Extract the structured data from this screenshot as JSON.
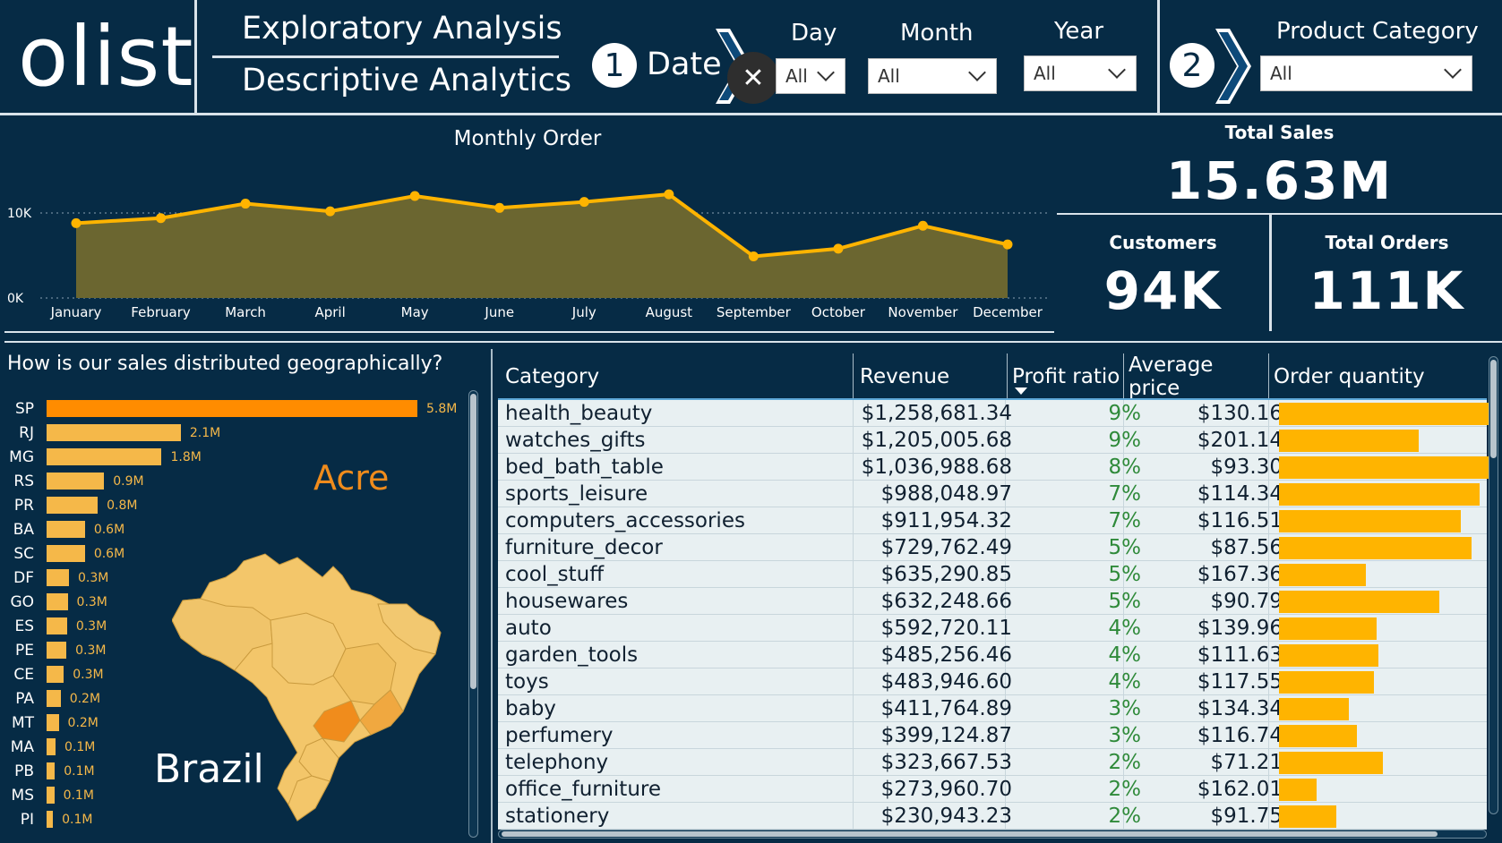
{
  "header": {
    "logo": "olist",
    "title1": "Exploratory Analysis",
    "title2": "Descriptive Analytics",
    "step1": "1",
    "date_label": "Date",
    "step2": "2",
    "clear_icon": "close-icon",
    "slicers": {
      "day": {
        "label": "Day",
        "value": "All"
      },
      "month": {
        "label": "Month",
        "value": "All"
      },
      "year": {
        "label": "Year",
        "value": "All"
      },
      "category": {
        "label": "Product Category",
        "value": "All"
      }
    }
  },
  "colors": {
    "background": "#062b45",
    "line": "#ffb400",
    "area": "#6b6630",
    "bar_top": "#ff8c00",
    "bar": "#f5b849",
    "qty_bar": "#ffb400",
    "profit_text": "#2f8a3a"
  },
  "chart_data": {
    "type": "area",
    "title": "Monthly Order",
    "categories": [
      "January",
      "February",
      "March",
      "April",
      "May",
      "June",
      "July",
      "August",
      "September",
      "October",
      "November",
      "December"
    ],
    "values": [
      8800,
      9400,
      11100,
      10200,
      12000,
      10600,
      11300,
      12200,
      4900,
      5800,
      8500,
      6300
    ],
    "ytick_labels": [
      "0K",
      "10K"
    ],
    "yticks": [
      0,
      10000
    ],
    "ylim": [
      0,
      14000
    ],
    "grid": "dotted horizontal at ticks"
  },
  "kpis": {
    "total_sales": {
      "label": "Total Sales",
      "value": "15.63M"
    },
    "customers": {
      "label": "Customers",
      "value": "94K"
    },
    "total_orders": {
      "label": "Total Orders",
      "value": "111K"
    }
  },
  "geo": {
    "title": "How is our sales distributed geographically?",
    "highlight_label": "Acre",
    "map_label": "Brazil",
    "bars": [
      {
        "code": "SP",
        "label": "5.8M",
        "value": 5.8
      },
      {
        "code": "RJ",
        "label": "2.1M",
        "value": 2.1
      },
      {
        "code": "MG",
        "label": "1.8M",
        "value": 1.8
      },
      {
        "code": "RS",
        "label": "0.9M",
        "value": 0.9
      },
      {
        "code": "PR",
        "label": "0.8M",
        "value": 0.8
      },
      {
        "code": "BA",
        "label": "0.6M",
        "value": 0.6
      },
      {
        "code": "SC",
        "label": "0.6M",
        "value": 0.6
      },
      {
        "code": "DF",
        "label": "0.3M",
        "value": 0.35
      },
      {
        "code": "GO",
        "label": "0.3M",
        "value": 0.33
      },
      {
        "code": "ES",
        "label": "0.3M",
        "value": 0.32
      },
      {
        "code": "PE",
        "label": "0.3M",
        "value": 0.31
      },
      {
        "code": "CE",
        "label": "0.3M",
        "value": 0.27
      },
      {
        "code": "PA",
        "label": "0.2M",
        "value": 0.22
      },
      {
        "code": "MT",
        "label": "0.2M",
        "value": 0.19
      },
      {
        "code": "MA",
        "label": "0.1M",
        "value": 0.14
      },
      {
        "code": "PB",
        "label": "0.1M",
        "value": 0.13
      },
      {
        "code": "MS",
        "label": "0.1M",
        "value": 0.12
      },
      {
        "code": "PI",
        "label": "0.1M",
        "value": 0.1
      }
    ]
  },
  "table": {
    "headers": {
      "category": "Category",
      "revenue": "Revenue",
      "profit": "Profit ratio",
      "avg": "Average price",
      "qty": "Order quantity"
    },
    "rows": [
      {
        "category": "health_beauty",
        "revenue": "$1,258,681.34",
        "profit": "9%",
        "avg": "$130.16",
        "qty": 1.0
      },
      {
        "category": "watches_gifts",
        "revenue": "$1,205,005.68",
        "profit": "9%",
        "avg": "$201.14",
        "qty": 0.66
      },
      {
        "category": "bed_bath_table",
        "revenue": "$1,036,988.68",
        "profit": "8%",
        "avg": "$93.30",
        "qty": 1.0
      },
      {
        "category": "sports_leisure",
        "revenue": "$988,048.97",
        "profit": "7%",
        "avg": "$114.34",
        "qty": 0.95
      },
      {
        "category": "computers_accessories",
        "revenue": "$911,954.32",
        "profit": "7%",
        "avg": "$116.51",
        "qty": 0.86
      },
      {
        "category": "furniture_decor",
        "revenue": "$729,762.49",
        "profit": "5%",
        "avg": "$87.56",
        "qty": 0.91
      },
      {
        "category": "cool_stuff",
        "revenue": "$635,290.85",
        "profit": "5%",
        "avg": "$167.36",
        "qty": 0.41
      },
      {
        "category": "housewares",
        "revenue": "$632,248.66",
        "profit": "5%",
        "avg": "$90.79",
        "qty": 0.76
      },
      {
        "category": "auto",
        "revenue": "$592,720.11",
        "profit": "4%",
        "avg": "$139.96",
        "qty": 0.46
      },
      {
        "category": "garden_tools",
        "revenue": "$485,256.46",
        "profit": "4%",
        "avg": "$111.63",
        "qty": 0.47
      },
      {
        "category": "toys",
        "revenue": "$483,946.60",
        "profit": "4%",
        "avg": "$117.55",
        "qty": 0.45
      },
      {
        "category": "baby",
        "revenue": "$411,764.89",
        "profit": "3%",
        "avg": "$134.34",
        "qty": 0.33
      },
      {
        "category": "perfumery",
        "revenue": "$399,124.87",
        "profit": "3%",
        "avg": "$116.74",
        "qty": 0.37
      },
      {
        "category": "telephony",
        "revenue": "$323,667.53",
        "profit": "2%",
        "avg": "$71.21",
        "qty": 0.49
      },
      {
        "category": "office_furniture",
        "revenue": "$273,960.70",
        "profit": "2%",
        "avg": "$162.01",
        "qty": 0.18
      },
      {
        "category": "stationery",
        "revenue": "$230,943.23",
        "profit": "2%",
        "avg": "$91.75",
        "qty": 0.27
      }
    ]
  }
}
